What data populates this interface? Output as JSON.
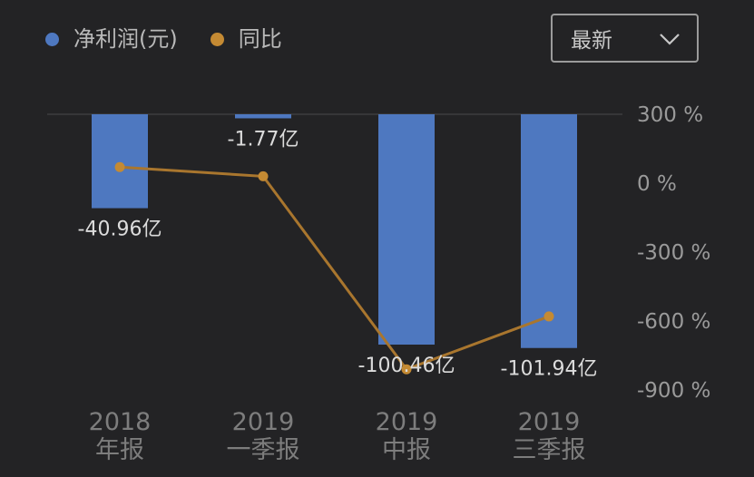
{
  "legend": [
    {
      "label": "净利润(元)",
      "color": "#4e78c0"
    },
    {
      "label": "同比",
      "color": "#c48a33"
    }
  ],
  "dropdown": {
    "label": "最新",
    "icon": "chevron-down-icon"
  },
  "colors": {
    "background": "#232325",
    "bar": "#4e78c0",
    "line": "#a9762e",
    "point": "#c48a33"
  },
  "chart_data": {
    "type": "bar",
    "categories": [
      [
        "2018",
        "年报"
      ],
      [
        "2019",
        "一季报"
      ],
      [
        "2019",
        "中报"
      ],
      [
        "2019",
        "三季报"
      ]
    ],
    "series": [
      {
        "name": "净利润(元)",
        "type": "bar",
        "values": [
          -40.96,
          -1.77,
          -100.46,
          -101.94
        ],
        "unit": "亿",
        "labels": [
          "-40.96亿",
          "-1.77亿",
          "-100.46亿",
          "-101.94亿"
        ]
      },
      {
        "name": "同比",
        "type": "line",
        "axis": "right",
        "values": [
          70,
          30,
          -810,
          -580
        ],
        "unit": "%"
      }
    ],
    "y_left_range": [
      -100.46,
      0
    ],
    "y_right": {
      "ticks": [
        300,
        0,
        -300,
        -600,
        -900
      ],
      "labels": [
        "300 %",
        "0 %",
        "-300 %",
        "-600 %",
        "-900 %"
      ],
      "range": [
        -900,
        300
      ]
    },
    "grid": false,
    "legend_position": "top-left"
  }
}
